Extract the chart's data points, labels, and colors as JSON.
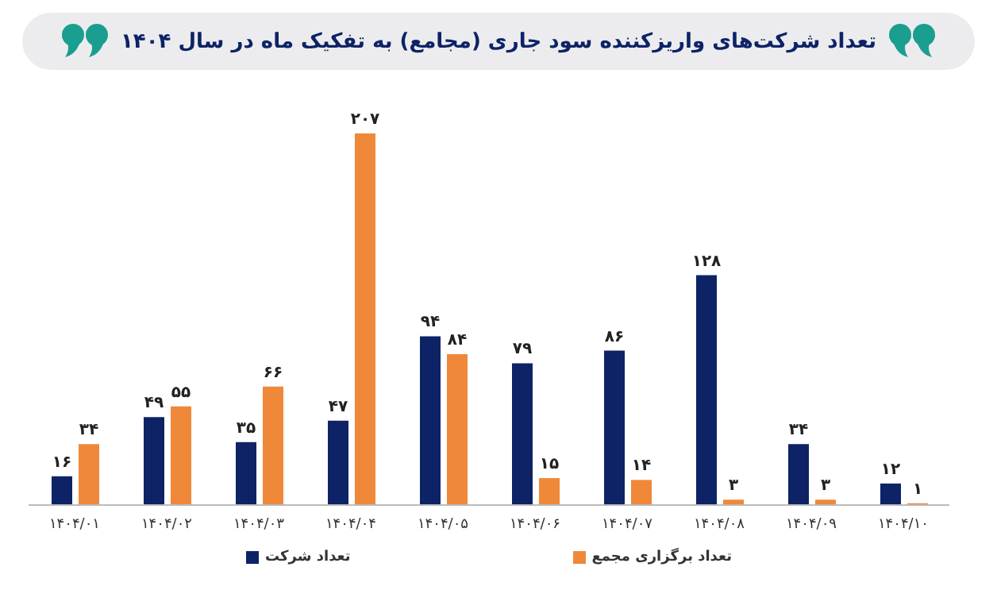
{
  "chart_data": {
    "type": "bar",
    "title": "تعداد شرکت‌های واریزکننده سود جاری (مجامع) به تفکیک ماه در سال ۱۴۰۴",
    "categories": [
      "۱۴۰۴/۰۱",
      "۱۴۰۴/۰۲",
      "۱۴۰۴/۰۳",
      "۱۴۰۴/۰۴",
      "۱۴۰۴/۰۵",
      "۱۴۰۴/۰۶",
      "۱۴۰۴/۰۷",
      "۱۴۰۴/۰۸",
      "۱۴۰۴/۰۹",
      "۱۴۰۴/۱۰"
    ],
    "series": [
      {
        "name": "تعداد شرکت",
        "color": "#0d2366",
        "values": [
          16,
          49,
          35,
          47,
          94,
          79,
          86,
          128,
          34,
          12
        ],
        "value_labels": [
          "۱۶",
          "۴۹",
          "۳۵",
          "۴۷",
          "۹۴",
          "۷۹",
          "۸۶",
          "۱۲۸",
          "۳۴",
          "۱۲"
        ]
      },
      {
        "name": "تعداد برگزاری مجمع",
        "color": "#f0883a",
        "values": [
          34,
          55,
          66,
          207,
          84,
          15,
          14,
          3,
          3,
          1
        ],
        "value_labels": [
          "۳۴",
          "۵۵",
          "۶۶",
          "۲۰۷",
          "۸۴",
          "۱۵",
          "۱۴",
          "۳",
          "۳",
          "۱"
        ]
      }
    ],
    "legend": "bottom",
    "grid": false
  }
}
